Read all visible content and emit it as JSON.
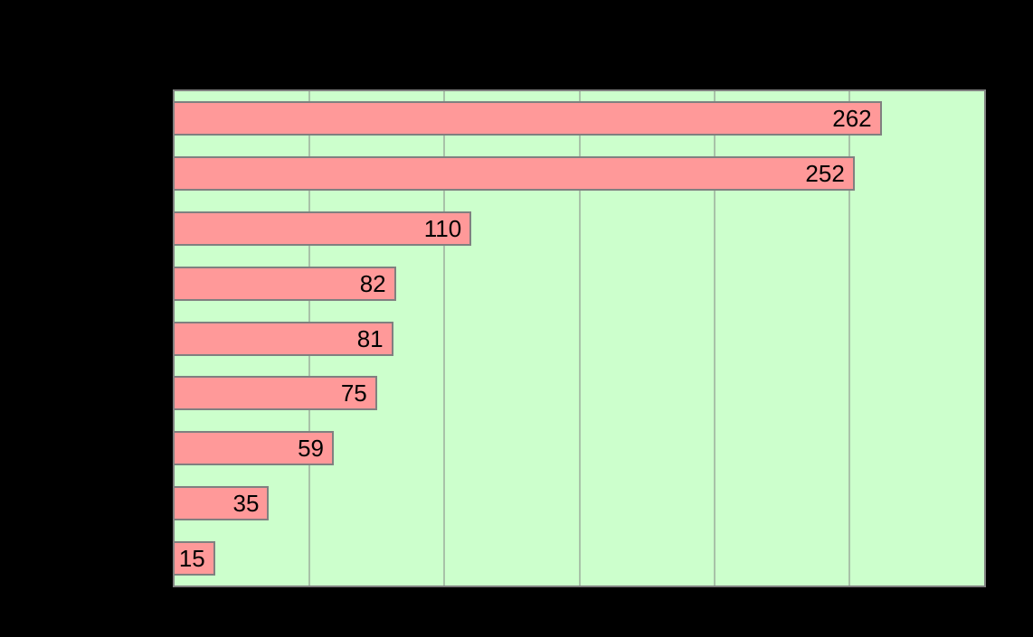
{
  "chart_data": {
    "type": "bar",
    "orientation": "horizontal",
    "values": [
      262,
      252,
      110,
      82,
      81,
      75,
      59,
      35,
      15
    ],
    "data_labels": [
      "262",
      "252",
      "110",
      "82",
      "81",
      "75",
      "59",
      "35",
      "15"
    ],
    "xlim": [
      0,
      300
    ],
    "x_gridlines": [
      50,
      100,
      150,
      200,
      250
    ],
    "grid": "vertical",
    "legend": "none",
    "colors": {
      "page_background": "#000000",
      "plot_background": "#ccffcc",
      "plot_border": "#808080",
      "gridline": "#a8c2a8",
      "bar_fill": "#ff9999",
      "bar_border": "#808080",
      "data_label_text": "#000000"
    }
  }
}
